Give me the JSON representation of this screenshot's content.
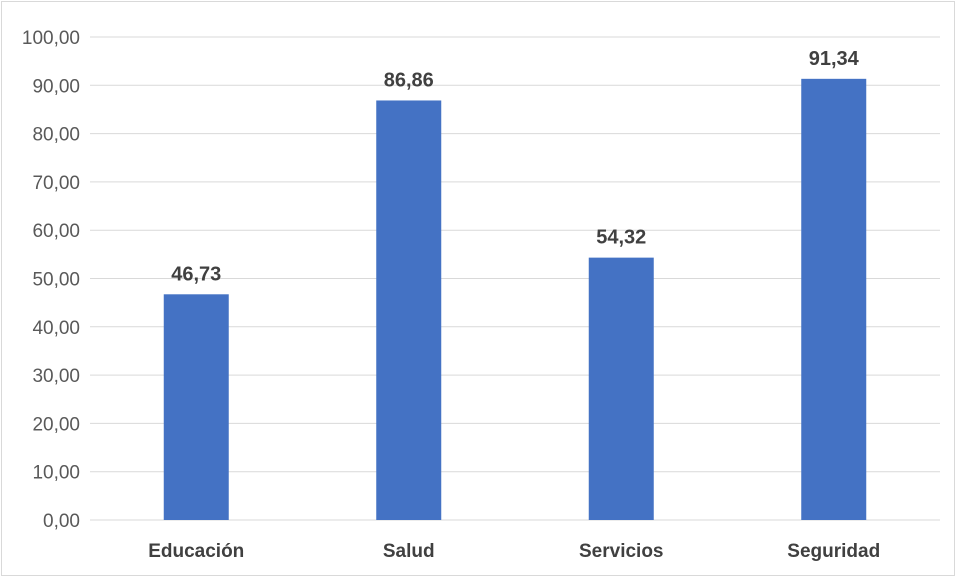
{
  "chart_data": {
    "type": "bar",
    "categories": [
      "Educación",
      "Salud",
      "Servicios",
      "Seguridad"
    ],
    "values": [
      46.73,
      86.86,
      54.32,
      91.34
    ],
    "value_labels": [
      "46,73",
      "86,86",
      "54,32",
      "91,34"
    ],
    "title": "",
    "xlabel": "",
    "ylabel": "",
    "ylim": [
      0,
      100
    ],
    "yticks": [
      0,
      10,
      20,
      30,
      40,
      50,
      60,
      70,
      80,
      90,
      100
    ],
    "ytick_labels": [
      "0,00",
      "10,00",
      "20,00",
      "30,00",
      "40,00",
      "50,00",
      "60,00",
      "70,00",
      "80,00",
      "90,00",
      "100,00"
    ],
    "grid": true,
    "legend": "none",
    "bar_color": "#4472c4",
    "grid_color": "#d9d9d9"
  }
}
